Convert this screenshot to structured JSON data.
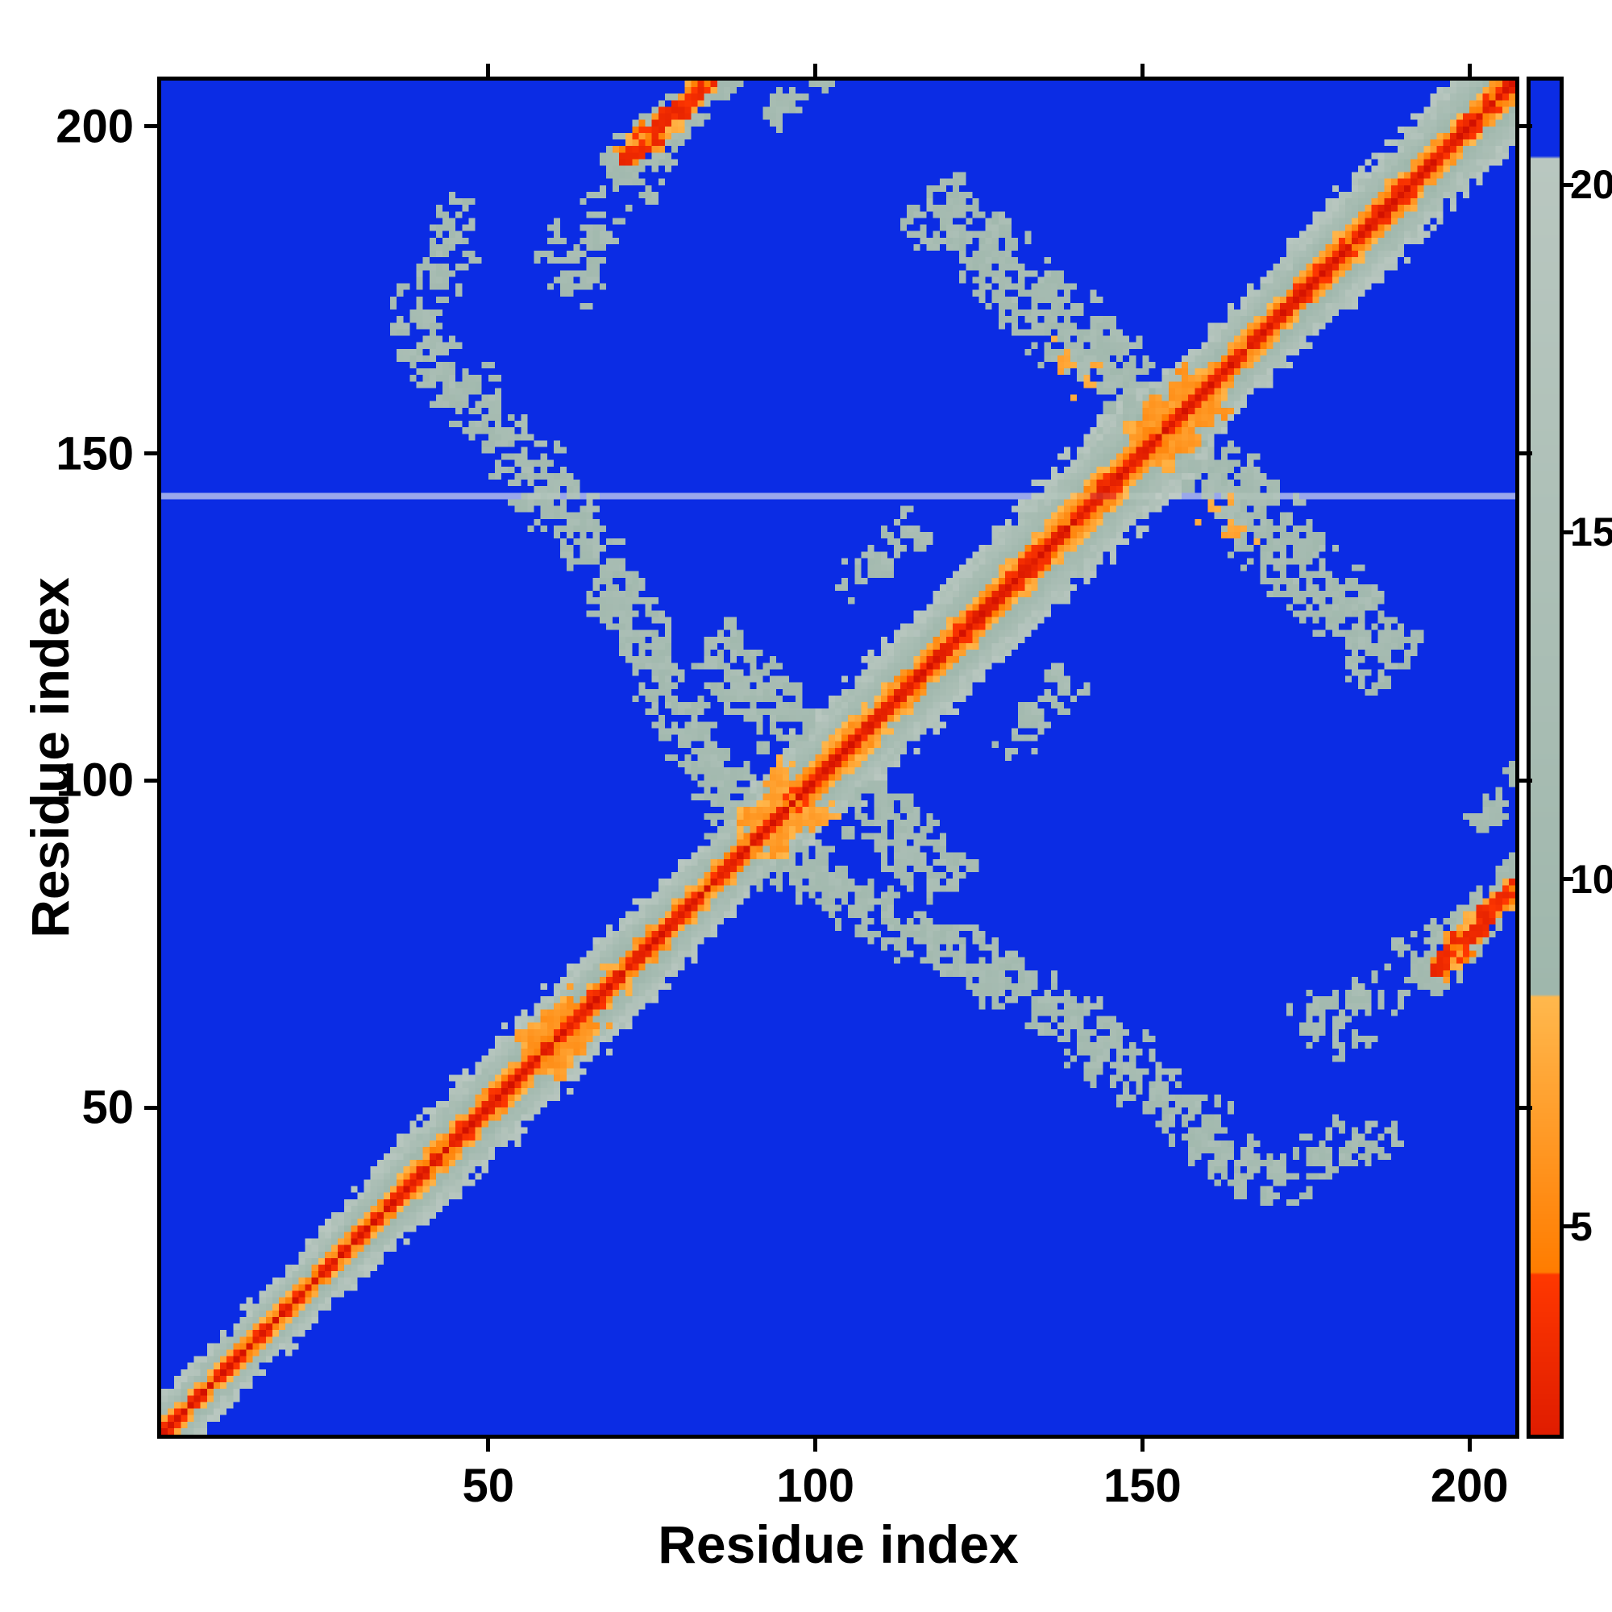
{
  "chart_data": {
    "type": "heatmap",
    "title": "",
    "xlabel": "Residue index",
    "ylabel": "Residue index",
    "n_residues": 207,
    "axis_min": 0,
    "axis_max": 207,
    "x_ticks": [
      50,
      100,
      150,
      200
    ],
    "y_ticks": [
      50,
      100,
      150,
      200
    ],
    "colorbar": {
      "orientation": "vertical",
      "ticks": [
        5,
        10,
        15,
        20
      ],
      "value_min": 2,
      "value_max": 21.5
    },
    "colormap": {
      "meaning": "residue-residue distance: near=red, mid=orange, far=gray, very far=blue",
      "bands": [
        {
          "max": 4.3,
          "from": "#c50500",
          "to": "#ff3800"
        },
        {
          "max": 8.3,
          "from": "#ff7c00",
          "to": "#ffb84d"
        },
        {
          "max": 20.4,
          "from": "#9fb7ac",
          "to": "#b9c7c0"
        },
        {
          "max": 99,
          "from": "#0b2ce4",
          "to": "#0b2ce4"
        }
      ]
    },
    "background_value": 22.4,
    "seed": 20240601,
    "diagonal_band": {
      "offset": 1.4,
      "noise_amp": 2.2,
      "k_anchors": [
        [
          0,
          3.2
        ],
        [
          25,
          3.0
        ],
        [
          40,
          2.2
        ],
        [
          70,
          2.1
        ],
        [
          85,
          2.6
        ],
        [
          100,
          1.9
        ],
        [
          130,
          1.75
        ],
        [
          150,
          1.75
        ],
        [
          163,
          2.2
        ],
        [
          185,
          1.9
        ],
        [
          207,
          2.0
        ]
      ]
    },
    "clouds": [
      {
        "x1": 45,
        "y1": 188,
        "x2": 38,
        "y2": 166,
        "w": 5,
        "n": 60,
        "v0": 9.5,
        "v1": 14
      },
      {
        "x1": 38,
        "y1": 166,
        "x2": 52,
        "y2": 152,
        "w": 6,
        "n": 90,
        "v0": 9.5,
        "v1": 14
      },
      {
        "x1": 52,
        "y1": 152,
        "x2": 64,
        "y2": 136,
        "w": 6,
        "n": 90,
        "v0": 9.5,
        "v1": 14
      },
      {
        "x1": 64,
        "y1": 136,
        "x2": 72,
        "y2": 122,
        "w": 5,
        "n": 70,
        "v0": 9.5,
        "v1": 14
      },
      {
        "x1": 72,
        "y1": 122,
        "x2": 80,
        "y2": 106,
        "w": 5,
        "n": 80,
        "v0": 9.5,
        "v1": 14
      },
      {
        "x1": 80,
        "y1": 106,
        "x2": 88,
        "y2": 93,
        "w": 5,
        "n": 80,
        "v0": 9.5,
        "v1": 13.5
      },
      {
        "x1": 82,
        "y1": 120,
        "x2": 98,
        "y2": 105,
        "w": 6,
        "n": 110,
        "v0": 9.5,
        "v1": 14
      },
      {
        "x1": 103,
        "y1": 128,
        "x2": 115,
        "y2": 138,
        "w": 4,
        "n": 35,
        "v0": 10.5,
        "v1": 14
      },
      {
        "x1": 116,
        "y1": 189,
        "x2": 152,
        "y2": 153,
        "w": 7,
        "n": 160,
        "v0": 9.5,
        "v1": 14
      },
      {
        "x1": 152,
        "y1": 153,
        "x2": 190,
        "y2": 117,
        "w": 7,
        "n": 160,
        "v0": 9.5,
        "v1": 14
      },
      {
        "x1": 133,
        "y1": 168,
        "x2": 168,
        "y2": 133,
        "w": 3,
        "n": 12,
        "v0": 6.2,
        "v1": 7.9
      },
      {
        "x1": 194,
        "y1": 70,
        "x2": 207,
        "y2": 84,
        "w": 1.1,
        "n": 80,
        "v0": 2.6,
        "v1": 5.2
      },
      {
        "x1": 194,
        "y1": 70,
        "x2": 207,
        "y2": 84,
        "w": 2.2,
        "n": 70,
        "v0": 6.0,
        "v1": 8.2
      },
      {
        "x1": 192,
        "y1": 68,
        "x2": 207,
        "y2": 86,
        "w": 4.2,
        "n": 110,
        "v0": 9.5,
        "v1": 13
      },
      {
        "x1": 56,
        "y1": 182,
        "x2": 66,
        "y2": 174,
        "w": 4,
        "n": 25,
        "v0": 10,
        "v1": 13
      },
      {
        "x1": 62,
        "y1": 178,
        "x2": 76,
        "y2": 196,
        "w": 5,
        "n": 40,
        "v0": 10,
        "v1": 13.5
      },
      {
        "x1": 55,
        "y1": 59,
        "x2": 63,
        "y2": 66,
        "w": 2.6,
        "n": 50,
        "v0": 5.5,
        "v1": 8.2
      },
      {
        "x1": 147,
        "y1": 151,
        "x2": 157,
        "y2": 161,
        "w": 3,
        "n": 60,
        "v0": 5.5,
        "v1": 8.5
      },
      {
        "x1": 88,
        "y1": 92,
        "x2": 96,
        "y2": 100,
        "w": 3,
        "n": 50,
        "v0": 5.8,
        "v1": 8.5
      },
      {
        "x1": 200,
        "y1": 92,
        "x2": 207,
        "y2": 100,
        "w": 3,
        "n": 25,
        "v0": 10,
        "v1": 13
      }
    ],
    "missing_row": 143,
    "missing_row_blend": 0.62
  }
}
